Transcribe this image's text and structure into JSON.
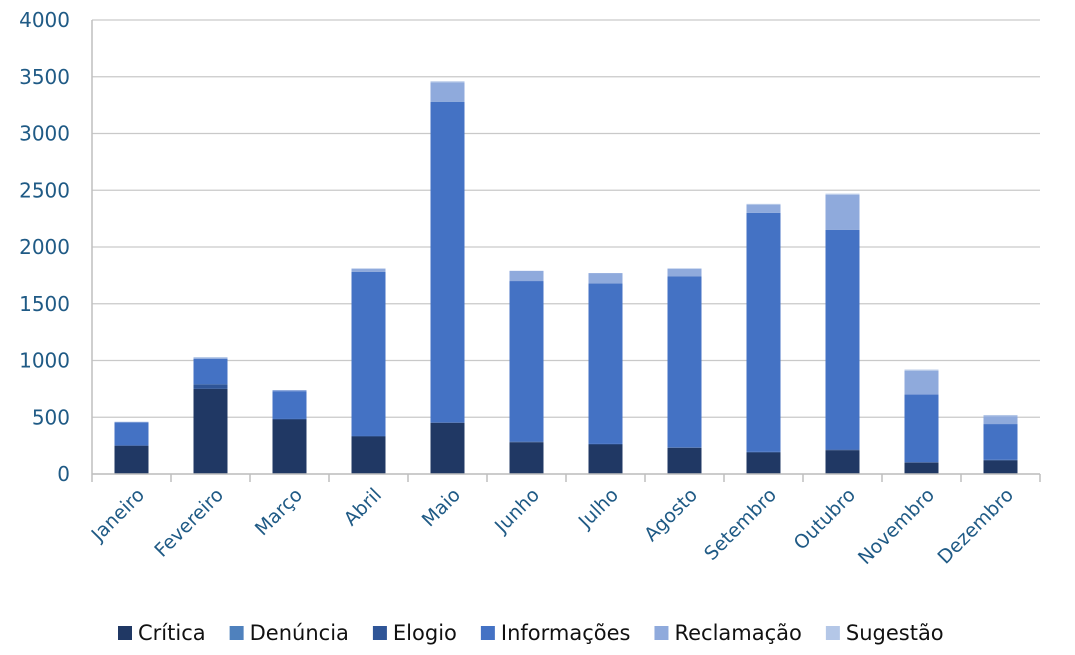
{
  "chart_data": {
    "type": "bar",
    "stacked": true,
    "categories": [
      "Janeiro",
      "Fevereiro",
      "Março",
      "Abril",
      "Maio",
      "Junho",
      "Julho",
      "Agosto",
      "Setembro",
      "Outubro",
      "Novembro",
      "Dezembro"
    ],
    "ylim": [
      0,
      4000
    ],
    "yticks": [
      0,
      500,
      1000,
      1500,
      2000,
      2500,
      3000,
      3500,
      4000
    ],
    "grid": true,
    "legend_position": "bottom",
    "series": [
      {
        "name": "Crítica",
        "color": "#203864",
        "values": [
          250,
          750,
          480,
          330,
          450,
          280,
          260,
          230,
          190,
          210,
          100,
          120
        ]
      },
      {
        "name": "Denúncia",
        "color": "#4f81bd",
        "values": [
          0,
          0,
          0,
          0,
          0,
          0,
          0,
          0,
          0,
          0,
          0,
          0
        ]
      },
      {
        "name": "Elogio",
        "color": "#2f5597",
        "values": [
          0,
          40,
          5,
          5,
          5,
          5,
          5,
          5,
          5,
          5,
          5,
          5
        ]
      },
      {
        "name": "Informações",
        "color": "#4472c4",
        "values": [
          205,
          225,
          245,
          1445,
          2825,
          1415,
          1415,
          1505,
          2105,
          1935,
          595,
          315
        ]
      },
      {
        "name": "Reclamação",
        "color": "#8faadc",
        "values": [
          5,
          10,
          10,
          30,
          170,
          90,
          90,
          70,
          70,
          310,
          210,
          70
        ]
      },
      {
        "name": "Sugestão",
        "color": "#b4c7e7",
        "values": [
          0,
          5,
          0,
          0,
          10,
          0,
          0,
          0,
          10,
          10,
          10,
          10
        ]
      }
    ]
  }
}
